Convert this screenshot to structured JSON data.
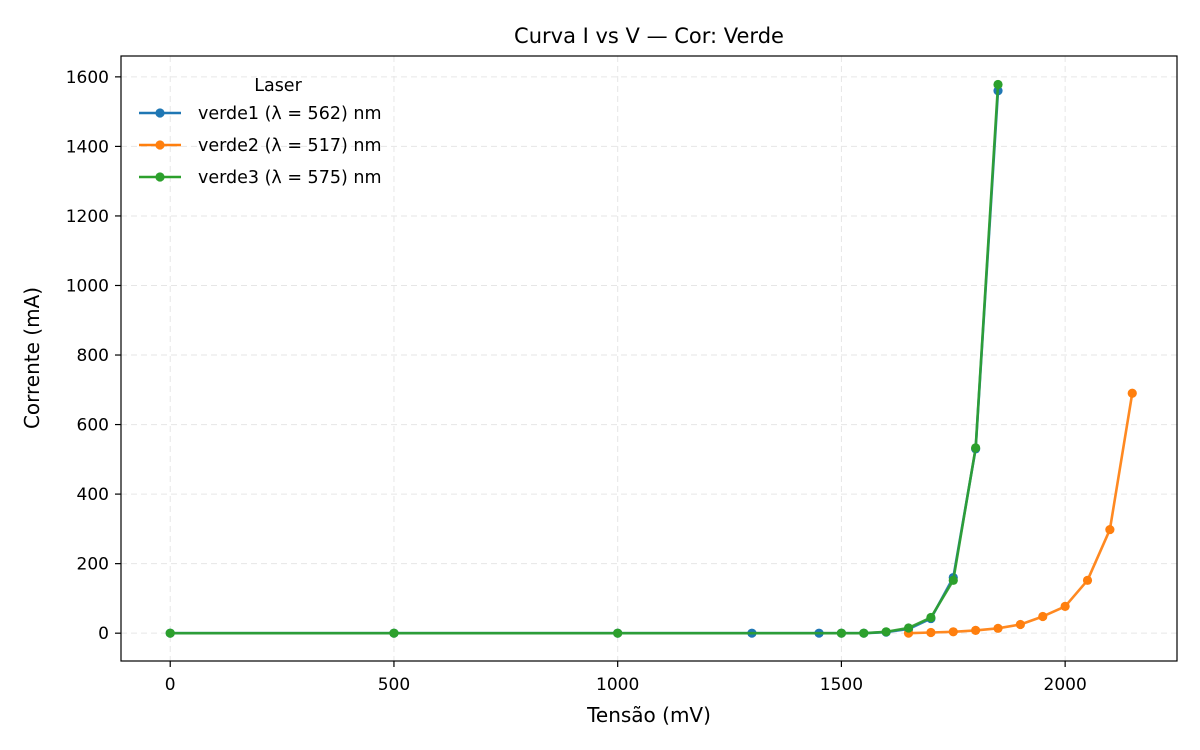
{
  "chart_data": {
    "type": "line",
    "title": "Curva I vs V — Cor: Verde",
    "xlabel": "Tensão (mV)",
    "ylabel": "Corrente (mA)",
    "xlim": [
      -110,
      2250
    ],
    "ylim": [
      -80,
      1660
    ],
    "xticks": [
      0,
      500,
      1000,
      1500,
      2000
    ],
    "yticks": [
      0,
      200,
      400,
      600,
      800,
      1000,
      1200,
      1400,
      1600
    ],
    "grid": true,
    "legend": {
      "title": "Laser",
      "placement": "upper-left"
    },
    "series": [
      {
        "name": "verde1 (λ = 562) nm",
        "color": "#1f77b4",
        "x": [
          0,
          500,
          1000,
          1300,
          1450,
          1500,
          1550,
          1600,
          1650,
          1700,
          1750,
          1800,
          1850
        ],
        "y": [
          0,
          0,
          0,
          0,
          0,
          0,
          0,
          3,
          12,
          42,
          160,
          530,
          1560
        ]
      },
      {
        "name": "verde2 (λ = 517) nm",
        "color": "#ff7f0e",
        "x": [
          1650,
          1700,
          1750,
          1800,
          1850,
          1900,
          1950,
          2000,
          2050,
          2100,
          2150
        ],
        "y": [
          0,
          2,
          4,
          8,
          14,
          25,
          48,
          77,
          152,
          298,
          690
        ]
      },
      {
        "name": "verde3 (λ = 575) nm",
        "color": "#2ca02c",
        "x": [
          0,
          500,
          1000,
          1500,
          1550,
          1600,
          1650,
          1700,
          1750,
          1800,
          1850
        ],
        "y": [
          0,
          0,
          0,
          0,
          0,
          4,
          15,
          45,
          152,
          533,
          1578
        ]
      }
    ]
  }
}
